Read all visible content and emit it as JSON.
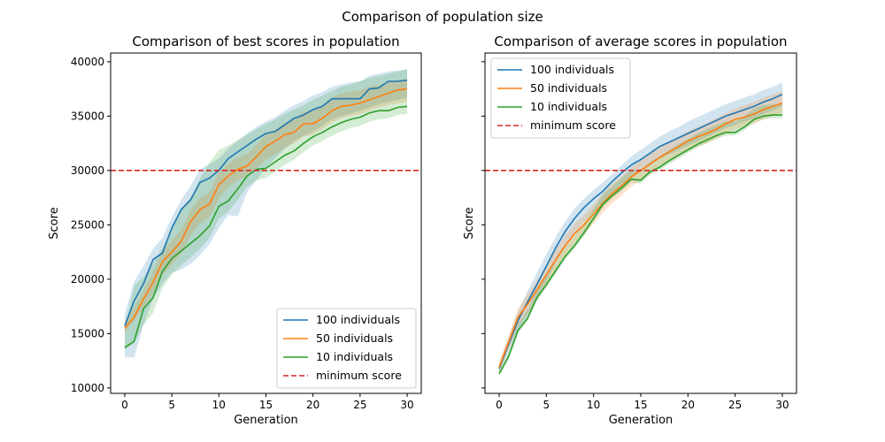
{
  "figure": {
    "suptitle": "Comparison of population size"
  },
  "colors": {
    "blue": "#1f77b4",
    "orange": "#ff7f0e",
    "green": "#2ca02c",
    "red": "#d62728"
  },
  "chart_data": [
    {
      "type": "line",
      "title": "Comparison of best scores in population",
      "xlabel": "Generation",
      "ylabel": "Score",
      "xlim": [
        -1.5,
        31.5
      ],
      "ylim": [
        9500,
        40800
      ],
      "xticks": [
        0,
        5,
        10,
        15,
        20,
        25,
        30
      ],
      "yticks": [
        10000,
        15000,
        20000,
        25000,
        30000,
        35000,
        40000
      ],
      "legend_position": "lower-right",
      "grid": false,
      "x": [
        0,
        1,
        2,
        3,
        4,
        5,
        6,
        7,
        8,
        9,
        10,
        11,
        12,
        13,
        14,
        15,
        16,
        17,
        18,
        19,
        20,
        21,
        22,
        23,
        24,
        25,
        26,
        27,
        28,
        29,
        30
      ],
      "series": [
        {
          "name": "100 individuals",
          "color": "#1f77b4",
          "values": [
            15700,
            18000,
            19600,
            21800,
            22400,
            24700,
            26400,
            27300,
            28900,
            29300,
            30000,
            31100,
            31700,
            32300,
            32900,
            33400,
            33600,
            34200,
            34800,
            35100,
            35600,
            35900,
            36600,
            36600,
            36600,
            36600,
            37500,
            37600,
            38200,
            38200,
            38300
          ],
          "lower": [
            12800,
            12800,
            15800,
            18200,
            19600,
            20600,
            20900,
            21400,
            22200,
            23200,
            24700,
            25900,
            25800,
            28000,
            29100,
            30300,
            31100,
            32000,
            32700,
            33200,
            33600,
            34100,
            34700,
            35000,
            35200,
            35500,
            35800,
            36100,
            36300,
            36500,
            36700
          ],
          "upper": [
            16800,
            19800,
            21200,
            22800,
            23800,
            25700,
            27300,
            28600,
            30100,
            30600,
            31100,
            32000,
            32700,
            33400,
            34000,
            34500,
            34900,
            35500,
            36000,
            36400,
            36900,
            37200,
            37700,
            37900,
            38100,
            38200,
            38700,
            38900,
            39100,
            39200,
            39300
          ]
        },
        {
          "name": "50 individuals",
          "color": "#ff7f0e",
          "values": [
            15500,
            16500,
            18200,
            19700,
            21600,
            22500,
            23500,
            25300,
            26400,
            26900,
            28700,
            29500,
            30100,
            30400,
            31300,
            32200,
            32700,
            33300,
            33500,
            34300,
            34300,
            34800,
            35500,
            35900,
            36000,
            36200,
            36500,
            36800,
            37100,
            37400,
            37500
          ],
          "lower": [
            15200,
            16200,
            17400,
            18700,
            20400,
            21300,
            22400,
            24000,
            25100,
            25700,
            27400,
            28500,
            29100,
            29500,
            30200,
            31000,
            31500,
            32100,
            32500,
            33100,
            33300,
            33800,
            34400,
            34800,
            35000,
            35200,
            35500,
            35800,
            36000,
            36200,
            36300
          ],
          "upper": [
            16200,
            17400,
            19000,
            20700,
            22500,
            23500,
            24600,
            26400,
            27500,
            28000,
            29800,
            30600,
            31200,
            31500,
            32400,
            33300,
            33800,
            34400,
            34700,
            35400,
            35500,
            36000,
            36700,
            37100,
            37200,
            37400,
            37700,
            37900,
            38100,
            38300,
            38400
          ]
        },
        {
          "name": "10 individuals",
          "color": "#2ca02c",
          "values": [
            13700,
            14300,
            17300,
            18300,
            20700,
            21900,
            22600,
            23300,
            24000,
            24900,
            26700,
            27200,
            28300,
            29500,
            30100,
            30200,
            30800,
            31400,
            31800,
            32500,
            33100,
            33500,
            34000,
            34400,
            34700,
            34900,
            35300,
            35500,
            35500,
            35800,
            35900
          ],
          "lower": [
            13600,
            14100,
            15800,
            16900,
            19200,
            20400,
            21300,
            22000,
            22800,
            23800,
            25600,
            26200,
            27300,
            28500,
            29100,
            29300,
            29900,
            30500,
            31000,
            31700,
            32300,
            32700,
            33200,
            33600,
            33900,
            34100,
            34500,
            34700,
            34800,
            35100,
            35200
          ],
          "upper": [
            15600,
            19400,
            20200,
            21500,
            22900,
            24500,
            26500,
            27500,
            29300,
            30700,
            31900,
            32300,
            32800,
            33300,
            33800,
            34300,
            34700,
            35200,
            35600,
            36000,
            36500,
            36900,
            37300,
            37700,
            37900,
            38200,
            38500,
            38700,
            38900,
            39100,
            39300
          ]
        },
        {
          "name": "minimum score",
          "color": "#d62728",
          "style": "dashed",
          "constant": 30000
        }
      ]
    },
    {
      "type": "line",
      "title": "Comparison of average scores in population",
      "xlabel": "Generation",
      "ylabel": "Score",
      "xlim": [
        -1.5,
        31.5
      ],
      "ylim": [
        9500,
        40800
      ],
      "xticks": [
        0,
        5,
        10,
        15,
        20,
        25,
        30
      ],
      "yticks": [
        10000,
        15000,
        20000,
        25000,
        30000,
        35000,
        40000
      ],
      "show_ytick_labels": false,
      "legend_position": "upper-left",
      "grid": false,
      "x": [
        0,
        1,
        2,
        3,
        4,
        5,
        6,
        7,
        8,
        9,
        10,
        11,
        12,
        13,
        14,
        15,
        16,
        17,
        18,
        19,
        20,
        21,
        22,
        23,
        24,
        25,
        26,
        27,
        28,
        29,
        30
      ],
      "series": [
        {
          "name": "100 individuals",
          "color": "#1f77b4",
          "values": [
            11800,
            14000,
            16200,
            17900,
            19500,
            21200,
            22900,
            24400,
            25600,
            26600,
            27400,
            28100,
            29000,
            29800,
            30500,
            31000,
            31600,
            32200,
            32600,
            33000,
            33400,
            33800,
            34200,
            34600,
            35000,
            35300,
            35600,
            35900,
            36300,
            36600,
            37000
          ],
          "lower": [
            11400,
            13400,
            15300,
            16700,
            18200,
            19800,
            21500,
            22900,
            24200,
            25300,
            26200,
            27000,
            27900,
            28700,
            29400,
            29900,
            30500,
            31100,
            31500,
            31900,
            32300,
            32700,
            33100,
            33500,
            33900,
            34200,
            34500,
            34800,
            35200,
            35500,
            35900
          ],
          "upper": [
            12200,
            14600,
            17000,
            18900,
            20600,
            22300,
            23900,
            25300,
            26500,
            27400,
            28200,
            28900,
            29700,
            30500,
            31300,
            31900,
            32500,
            33100,
            33600,
            34000,
            34500,
            34900,
            35300,
            35700,
            36100,
            36400,
            36700,
            37000,
            37400,
            37700,
            38100
          ]
        },
        {
          "name": "50 individuals",
          "color": "#ff7f0e",
          "values": [
            11900,
            14200,
            16500,
            17700,
            19000,
            20400,
            21800,
            23100,
            24200,
            25000,
            26000,
            27000,
            27900,
            28600,
            29400,
            30000,
            30600,
            31200,
            31700,
            32200,
            32700,
            33100,
            33400,
            33800,
            34300,
            34700,
            34900,
            35200,
            35600,
            35900,
            36200
          ],
          "lower": [
            11500,
            13600,
            15600,
            16800,
            18100,
            19500,
            20900,
            22200,
            23300,
            24100,
            25100,
            26100,
            27000,
            27700,
            28500,
            29100,
            29700,
            30300,
            30800,
            31300,
            31800,
            32200,
            32500,
            32900,
            33400,
            33800,
            34000,
            34300,
            34700,
            35000,
            35300
          ],
          "upper": [
            12400,
            14900,
            17300,
            18600,
            19900,
            21300,
            22700,
            24000,
            25100,
            25900,
            26900,
            27900,
            28800,
            29500,
            30300,
            30900,
            31500,
            32100,
            32600,
            33100,
            33600,
            34000,
            34400,
            34800,
            35300,
            35700,
            36000,
            36300,
            36700,
            37000,
            37300
          ]
        },
        {
          "name": "10 individuals",
          "color": "#2ca02c",
          "values": [
            11300,
            12900,
            15300,
            16400,
            18300,
            19500,
            20800,
            22100,
            23100,
            24300,
            25600,
            26900,
            27700,
            28400,
            29200,
            29100,
            29900,
            30300,
            30900,
            31400,
            31900,
            32400,
            32800,
            33200,
            33500,
            33500,
            34000,
            34700,
            35000,
            35100,
            35100
          ],
          "lower": [
            11100,
            12600,
            15000,
            16100,
            18000,
            19200,
            20500,
            21800,
            22800,
            24000,
            25300,
            26600,
            27400,
            28100,
            28900,
            28800,
            29600,
            30000,
            30600,
            31100,
            31600,
            32100,
            32500,
            32900,
            33200,
            33200,
            33700,
            34400,
            34700,
            34800,
            34800
          ],
          "upper": [
            11700,
            13400,
            15900,
            17100,
            19000,
            20300,
            21600,
            22900,
            24000,
            25200,
            26500,
            27800,
            28600,
            29300,
            30100,
            30000,
            30800,
            31300,
            31900,
            32400,
            32900,
            33400,
            33800,
            34200,
            34500,
            34500,
            35000,
            35700,
            36000,
            36100,
            36100
          ]
        },
        {
          "name": "minimum score",
          "color": "#d62728",
          "style": "dashed",
          "constant": 30000
        }
      ]
    }
  ]
}
